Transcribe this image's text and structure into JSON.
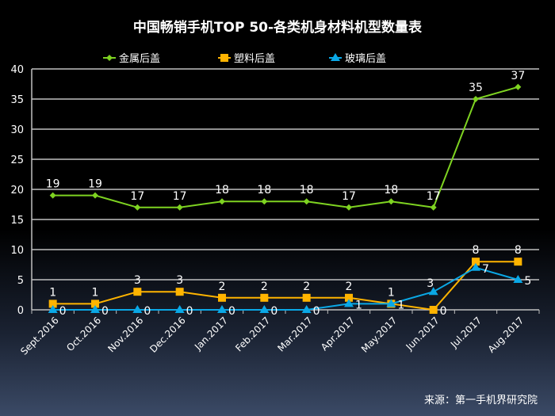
{
  "chart_data": {
    "type": "line",
    "title": "中国畅销手机TOP 50-各类机身材料机型数量表",
    "source": "来源：第一手机界研究院",
    "categories": [
      "Sept.2016",
      "Oct.2016",
      "Nov.2016",
      "Dec.2016",
      "Jan.2017",
      "Feb.2017",
      "Mar.2017",
      "Apr.2017",
      "May.2017",
      "Jun.2017",
      "Jul.2017",
      "Aug.2017"
    ],
    "ylim": [
      0,
      40
    ],
    "yticks": [
      0,
      5,
      10,
      15,
      20,
      25,
      30,
      35,
      40
    ],
    "grid": true,
    "legend": "top",
    "series": [
      {
        "name": "金属后盖",
        "color": "#7ed321",
        "marker": "diamond",
        "values": [
          19,
          19,
          17,
          17,
          18,
          18,
          18,
          17,
          18,
          17,
          35,
          37
        ]
      },
      {
        "name": "塑料后盖",
        "color": "#ffb400",
        "marker": "square",
        "values": [
          1,
          1,
          3,
          3,
          2,
          2,
          2,
          2,
          1,
          0,
          8,
          8
        ]
      },
      {
        "name": "玻璃后盖",
        "color": "#0aa8e6",
        "marker": "triangle",
        "values": [
          0,
          0,
          0,
          0,
          0,
          0,
          0,
          1,
          1,
          3,
          7,
          5
        ]
      }
    ]
  }
}
